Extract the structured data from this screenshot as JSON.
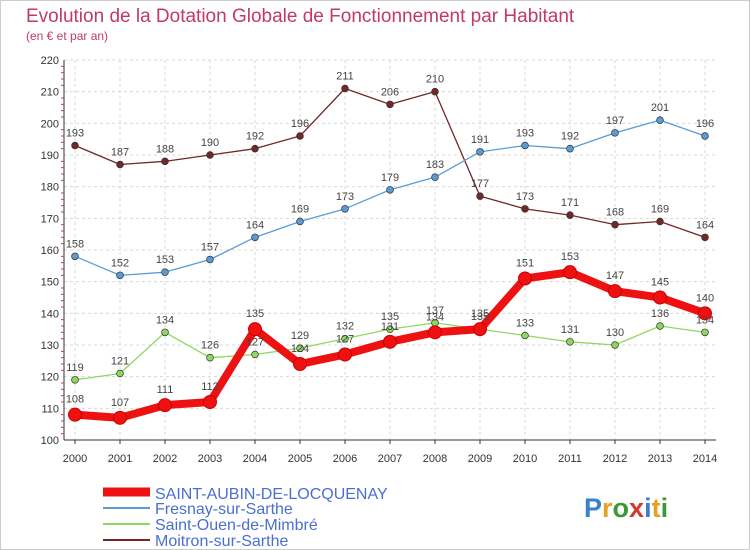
{
  "chart_data": {
    "type": "line",
    "title": "Evolution de la Dotation Globale de Fonctionnement par Habitant",
    "subtitle": "(en € et par an)",
    "xlabel": "",
    "ylabel": "",
    "ylim": [
      100,
      220
    ],
    "yticks": [
      100,
      110,
      120,
      130,
      140,
      150,
      160,
      170,
      180,
      190,
      200,
      210,
      220
    ],
    "grid": true,
    "legend_position": "bottom-left",
    "categories": [
      "2000",
      "2001",
      "2002",
      "2003",
      "2004",
      "2005",
      "2006",
      "2007",
      "2008",
      "2009",
      "2010",
      "2011",
      "2012",
      "2013",
      "2014"
    ],
    "series": [
      {
        "name": "Moitron-sur-Sarthe",
        "color": "#722828",
        "values": [
          193,
          187,
          188,
          190,
          192,
          196,
          211,
          206,
          210,
          177,
          173,
          171,
          168,
          169,
          164
        ]
      },
      {
        "name": "Fresnay-sur-Sarthe",
        "color": "#5b9bd5",
        "values": [
          158,
          152,
          153,
          157,
          164,
          169,
          173,
          179,
          183,
          191,
          193,
          192,
          197,
          201,
          196
        ]
      },
      {
        "name": "Saint-Ouen-de-Mimbré",
        "color": "#8fd860",
        "values": [
          119,
          121,
          134,
          126,
          127,
          129,
          132,
          135,
          137,
          135,
          133,
          131,
          130,
          136,
          134
        ]
      },
      {
        "name": "SAINT-AUBIN-DE-LOCQUENAY",
        "color": "#ee1111",
        "values": [
          108,
          107,
          111,
          112,
          135,
          124,
          127,
          131,
          134,
          135,
          151,
          153,
          147,
          145,
          140
        ]
      }
    ],
    "legend": [
      "SAINT-AUBIN-DE-LOCQUENAY",
      "Fresnay-sur-Sarthe",
      "Saint-Ouen-de-Mimbré",
      "Moitron-sur-Sarthe"
    ]
  },
  "brand": {
    "letters": [
      "P",
      "r",
      "o",
      "x",
      "i",
      "t",
      "i"
    ],
    "colors": [
      "#3a7fd0",
      "#e8a020",
      "#3a9a3a",
      "#d03a30",
      "#3a7fd0",
      "#e8a020",
      "#3a9a3a"
    ]
  },
  "colors": {
    "title": "#c0396b",
    "axis": "#333333",
    "grid": "#d8d8d8",
    "border": "#cccccc"
  }
}
